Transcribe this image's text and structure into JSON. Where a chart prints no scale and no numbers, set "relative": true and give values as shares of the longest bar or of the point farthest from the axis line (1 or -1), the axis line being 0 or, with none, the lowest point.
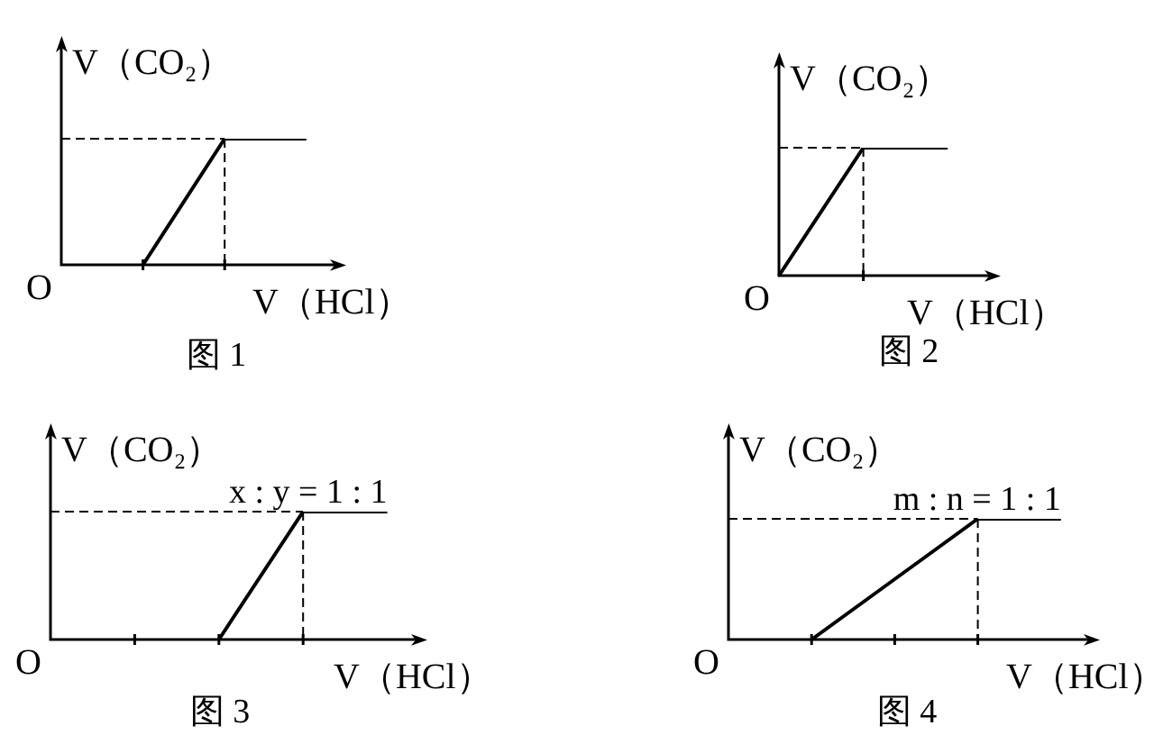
{
  "chart_data": [
    {
      "type": "line",
      "title": "图 1",
      "xlabel": "V（HCl）",
      "ylabel": "V（CO₂）",
      "relative": true,
      "categories": [
        null,
        null,
        null,
        null
      ],
      "series": [
        {
          "color": "#000000",
          "values": [
            null,
            0,
            1,
            1
          ]
        }
      ],
      "annotations": [
        "O"
      ]
    },
    {
      "type": "line",
      "title": "图 2",
      "xlabel": "V（HCl）",
      "ylabel": "V（CO₂）",
      "relative": true,
      "categories": [
        null,
        null,
        null
      ],
      "series": [
        {
          "color": "#000000",
          "values": [
            0,
            1,
            1
          ]
        }
      ],
      "annotations": [
        "O"
      ]
    },
    {
      "type": "line",
      "title": "图 3",
      "xlabel": "V（HCl）",
      "ylabel": "V（CO₂）",
      "relative": true,
      "categories": [
        null,
        null,
        null,
        null,
        null
      ],
      "series": [
        {
          "color": "#000000",
          "values": [
            null,
            null,
            0,
            1,
            1
          ]
        }
      ],
      "annotations": [
        "O",
        {
          "text": "x : y = 1 : 1",
          "y": 1
        }
      ]
    },
    {
      "type": "line",
      "title": "图 4",
      "xlabel": "V（HCl）",
      "ylabel": "V（CO₂）",
      "relative": true,
      "categories": [
        null,
        null,
        null,
        null,
        null
      ],
      "series": [
        {
          "color": "#000000",
          "values": [
            null,
            0,
            0.5,
            1,
            1
          ]
        }
      ],
      "annotations": [
        "O",
        {
          "text": "m : n = 1 : 1",
          "y": 1
        }
      ]
    }
  ]
}
